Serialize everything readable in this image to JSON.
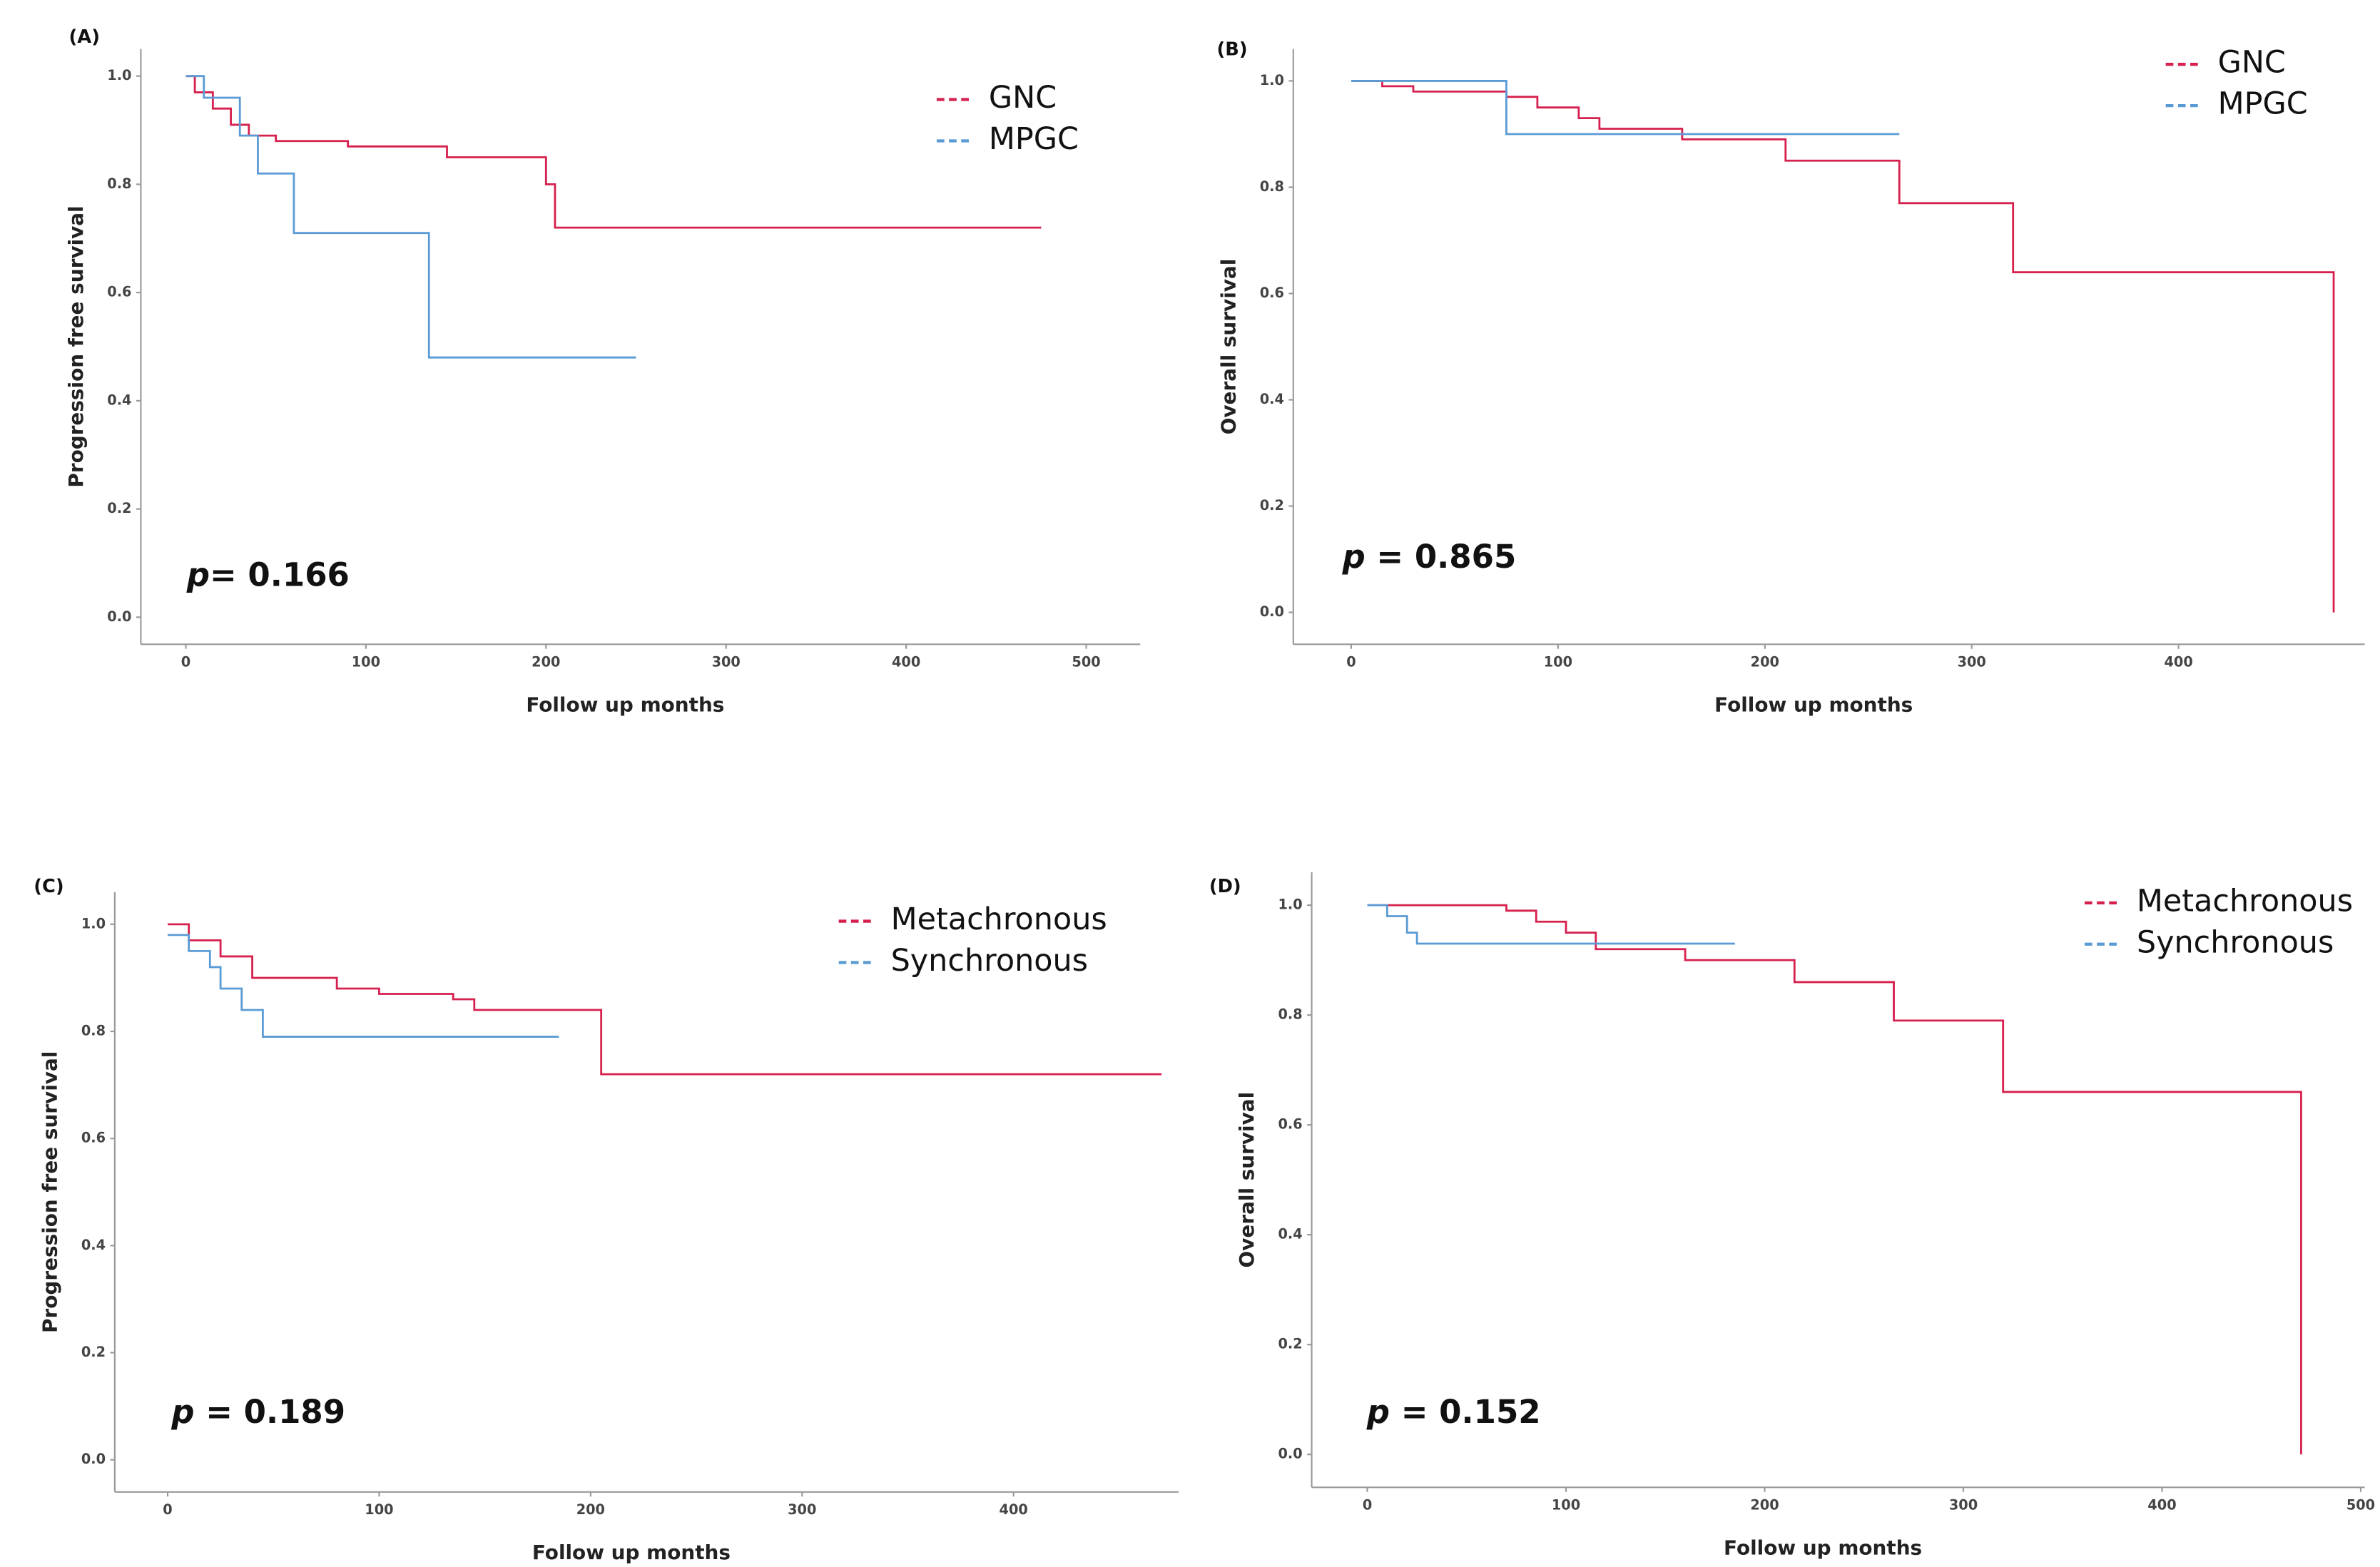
{
  "chart_data": [
    {
      "type": "line",
      "step": true,
      "panel_label": "(A)",
      "ylabel": "Progression free survival",
      "xlabel": "Follow up months",
      "annotation": {
        "italic": "p",
        "text": "= 0.166"
      },
      "legend": "upper right",
      "xlim": [
        -25,
        530
      ],
      "xticks": [
        0,
        100,
        200,
        300,
        400,
        500
      ],
      "ylim": [
        -0.05,
        1.05
      ],
      "yticks": [
        {
          "value": 0,
          "label": "0.0"
        },
        0.2,
        0.4,
        0.6,
        0.8,
        {
          "value": 1,
          "label": "1.0"
        }
      ],
      "series": [
        {
          "name": "GNC",
          "color": "#d6204e",
          "x": [
            0,
            5,
            15,
            25,
            35,
            50,
            90,
            145,
            200,
            205,
            475
          ],
          "values": [
            1.0,
            0.97,
            0.94,
            0.91,
            0.89,
            0.88,
            0.87,
            0.85,
            0.8,
            0.72,
            0.72
          ]
        },
        {
          "name": "MPGC",
          "color": "#5b9bd5",
          "x": [
            0,
            10,
            30,
            40,
            60,
            135,
            250
          ],
          "values": [
            1.0,
            0.96,
            0.89,
            0.82,
            0.71,
            0.48,
            0.48
          ]
        }
      ]
    },
    {
      "type": "line",
      "step": true,
      "panel_label": "(B)",
      "ylabel": "Overall survival",
      "xlabel": "Follow up months",
      "annotation": {
        "italic": "p",
        "text": " = 0.865"
      },
      "legend": "upper right",
      "xlim": [
        -28,
        490
      ],
      "xticks": [
        0,
        100,
        200,
        300,
        400
      ],
      "ylim": [
        -0.06,
        1.06
      ],
      "yticks": [
        {
          "value": 0,
          "label": "0.0"
        },
        0.2,
        0.4,
        0.6,
        0.8,
        {
          "value": 1,
          "label": "1.0"
        }
      ],
      "series": [
        {
          "name": "GNC",
          "color": "#d6204e",
          "x": [
            0,
            15,
            30,
            75,
            90,
            110,
            120,
            160,
            210,
            265,
            320,
            475,
            475
          ],
          "values": [
            1.0,
            0.99,
            0.98,
            0.97,
            0.95,
            0.93,
            0.91,
            0.89,
            0.85,
            0.77,
            0.64,
            0.64,
            0.0
          ]
        },
        {
          "name": "MPGC",
          "color": "#5b9bd5",
          "x": [
            0,
            75,
            265
          ],
          "values": [
            1.0,
            0.9,
            0.9
          ]
        }
      ]
    },
    {
      "type": "line",
      "step": true,
      "panel_label": "(C)",
      "ylabel": "Progression free survival",
      "xlabel": "Follow up months",
      "annotation": {
        "italic": "p",
        "text": " = 0.189"
      },
      "legend": "upper right",
      "xlim": [
        -25,
        478
      ],
      "xticks": [
        0,
        100,
        200,
        300,
        400
      ],
      "ylim": [
        -0.06,
        1.06
      ],
      "yticks": [
        {
          "value": 0,
          "label": "0.0"
        },
        0.2,
        0.4,
        0.6,
        0.8,
        {
          "value": 1,
          "label": "1.0"
        }
      ],
      "series": [
        {
          "name": "Metachronous",
          "color": "#d6204e",
          "x": [
            0,
            10,
            25,
            40,
            80,
            100,
            135,
            145,
            195,
            205,
            470
          ],
          "values": [
            1.0,
            0.97,
            0.94,
            0.9,
            0.88,
            0.87,
            0.86,
            0.84,
            0.84,
            0.72,
            0.72
          ]
        },
        {
          "name": "Synchronous",
          "color": "#5b9bd5",
          "x": [
            0,
            10,
            20,
            25,
            35,
            45,
            185
          ],
          "values": [
            0.98,
            0.95,
            0.92,
            0.88,
            0.84,
            0.79,
            0.79
          ]
        }
      ]
    },
    {
      "type": "line",
      "step": true,
      "panel_label": "(D)",
      "ylabel": "Overall survival",
      "xlabel": "Follow up months",
      "annotation": {
        "italic": "p",
        "text": " = 0.152"
      },
      "legend": "upper right",
      "xlim": [
        -28,
        502
      ],
      "xticks": [
        0,
        100,
        200,
        300,
        400,
        500
      ],
      "ylim": [
        -0.06,
        1.06
      ],
      "yticks": [
        {
          "value": 0,
          "label": "0.0"
        },
        0.2,
        0.4,
        0.6,
        0.8,
        {
          "value": 1,
          "label": "1.0"
        }
      ],
      "series": [
        {
          "name": "Metachronous",
          "color": "#d6204e",
          "x": [
            0,
            70,
            85,
            100,
            115,
            160,
            215,
            265,
            320,
            470,
            470
          ],
          "values": [
            1.0,
            0.99,
            0.97,
            0.95,
            0.92,
            0.9,
            0.86,
            0.79,
            0.66,
            0.66,
            0.0
          ]
        },
        {
          "name": "Synchronous",
          "color": "#5b9bd5",
          "x": [
            0,
            10,
            20,
            25,
            185
          ],
          "values": [
            1.0,
            0.98,
            0.95,
            0.93,
            0.93
          ]
        }
      ]
    }
  ]
}
